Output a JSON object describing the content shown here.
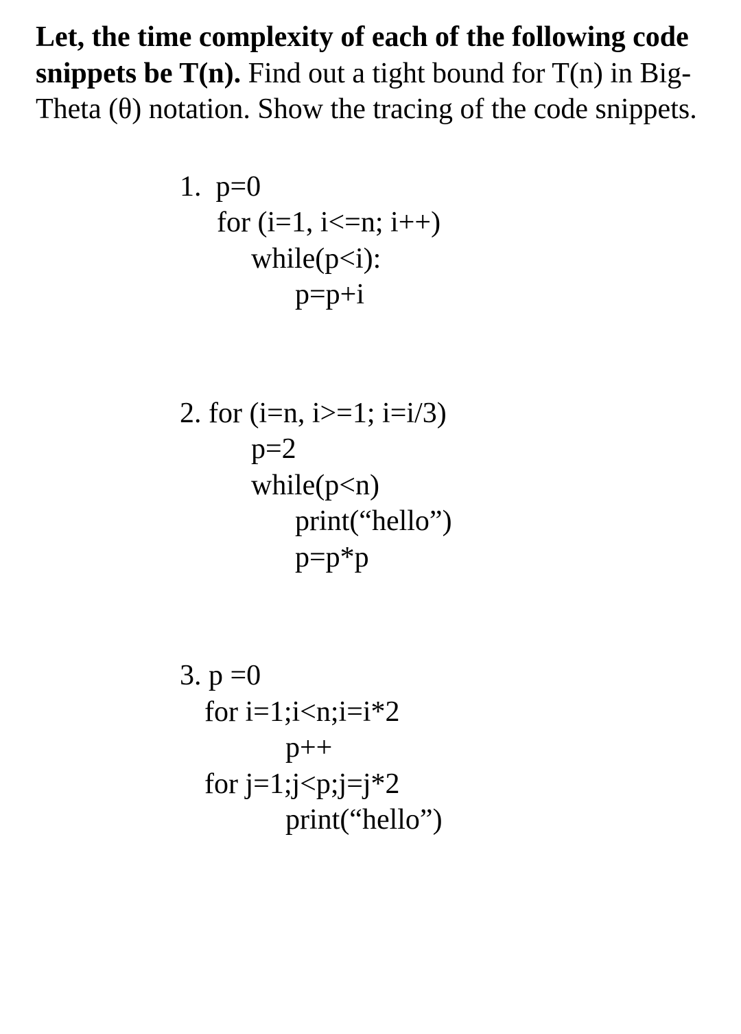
{
  "background_color": "#ffffff",
  "text_color": "#000000",
  "font_family": "Times New Roman",
  "font_size_pt": 32,
  "intro": {
    "bold_part": "Let, the time complexity of each of the following code snippets be T(n). ",
    "rest": "Find out a tight bound for T(n) in Big-Theta (θ) notation. Show the tracing of the code snippets."
  },
  "snippets": [
    {
      "number": "1.",
      "lines": [
        {
          "text": "1.  p=0",
          "indent": "first-line"
        },
        {
          "text": "for (i=1, i<=n; i++)",
          "indent": "ind1"
        },
        {
          "text": "while(p<i):",
          "indent": "ind2"
        },
        {
          "text": "p=p+i",
          "indent": "ind3"
        }
      ]
    },
    {
      "number": "2.",
      "lines": [
        {
          "text": "2. for (i=n, i>=1; i=i/3)",
          "indent": "first-line"
        },
        {
          "text": "p=2",
          "indent": "ind2"
        },
        {
          "text": "while(p<n)",
          "indent": "ind2"
        },
        {
          "text": "print(“hello”)",
          "indent": "ind3"
        },
        {
          "text": "p=p*p",
          "indent": "ind3"
        }
      ]
    },
    {
      "number": "3.",
      "lines": [
        {
          "text": "3. p =0",
          "indent": "first-line"
        },
        {
          "text": "for i=1;i<n;i=i*2",
          "indent": "ind1b"
        },
        {
          "text": "p++",
          "indent": "ind2b"
        },
        {
          "text": "for j=1;j<p;j=j*2",
          "indent": "ind1b"
        },
        {
          "text": "print(“hello”)",
          "indent": "ind2b"
        }
      ]
    }
  ]
}
